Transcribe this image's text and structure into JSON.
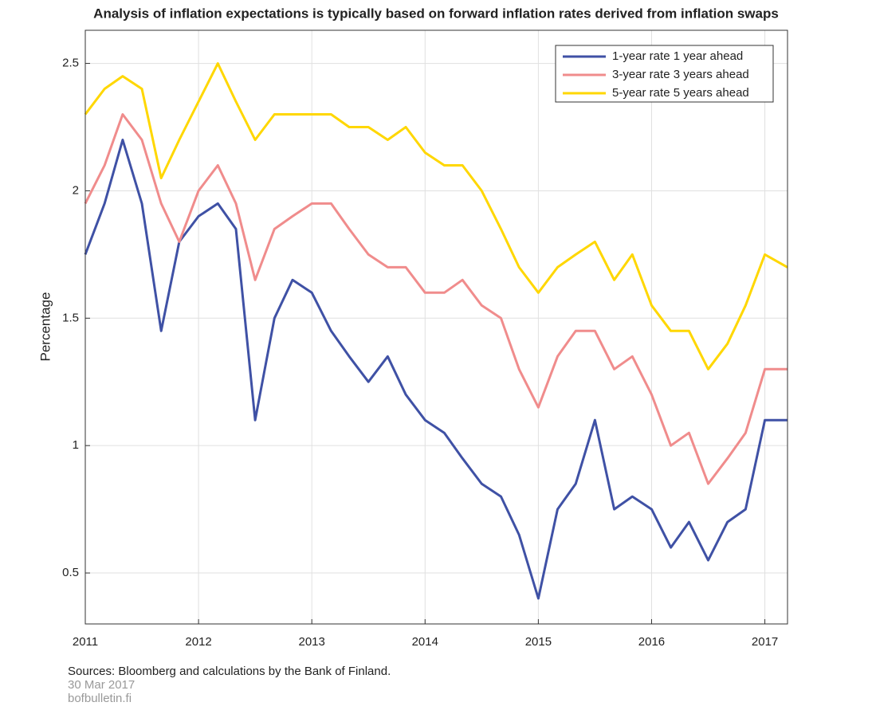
{
  "chart_data": {
    "type": "line",
    "title": "Analysis of inflation expectations is typically based on forward inflation rates derived from inflation swaps",
    "y_label": "Percentage",
    "source": "Sources: Bloomberg and calculations by the Bank of Finland.",
    "date": "30 Mar 2017",
    "website": "bofbulletin.fi",
    "x": [
      2011,
      2011.17,
      2011.33,
      2011.5,
      2011.67,
      2011.83,
      2012,
      2012.17,
      2012.33,
      2012.5,
      2012.67,
      2012.83,
      2013,
      2013.17,
      2013.33,
      2013.5,
      2013.67,
      2013.83,
      2014,
      2014.17,
      2014.33,
      2014.5,
      2014.67,
      2014.83,
      2015,
      2015.17,
      2015.33,
      2015.5,
      2015.67,
      2015.83,
      2016,
      2016.17,
      2016.33,
      2016.5,
      2016.67,
      2016.83,
      2017,
      2017.2
    ],
    "series": [
      {
        "name": "1-year rate 1 year ahead",
        "color": "#3f51a5",
        "values": [
          1.75,
          1.95,
          2.2,
          1.95,
          1.45,
          1.8,
          1.9,
          1.95,
          1.85,
          1.1,
          1.5,
          1.65,
          1.6,
          1.45,
          1.35,
          1.25,
          1.35,
          1.2,
          1.1,
          1.05,
          0.95,
          0.85,
          0.8,
          0.65,
          0.4,
          0.75,
          0.85,
          1.1,
          0.75,
          0.8,
          0.75,
          0.6,
          0.7,
          0.55,
          0.7,
          0.75,
          1.1,
          1.1
        ]
      },
      {
        "name": "3-year rate 3 years ahead",
        "color": "#f08c8c",
        "values": [
          1.95,
          2.1,
          2.3,
          2.2,
          1.95,
          1.8,
          2.0,
          2.1,
          1.95,
          1.65,
          1.85,
          1.9,
          1.95,
          1.95,
          1.85,
          1.75,
          1.7,
          1.7,
          1.6,
          1.6,
          1.65,
          1.55,
          1.5,
          1.3,
          1.15,
          1.35,
          1.45,
          1.45,
          1.3,
          1.35,
          1.2,
          1.0,
          1.05,
          0.85,
          0.95,
          1.05,
          1.3,
          1.3
        ]
      },
      {
        "name": "5-year rate 5 years ahead",
        "color": "#ffd700",
        "values": [
          2.3,
          2.4,
          2.45,
          2.4,
          2.05,
          2.2,
          2.35,
          2.5,
          2.35,
          2.2,
          2.3,
          2.3,
          2.3,
          2.3,
          2.25,
          2.25,
          2.2,
          2.25,
          2.15,
          2.1,
          2.1,
          2.0,
          1.85,
          1.7,
          1.6,
          1.7,
          1.75,
          1.8,
          1.65,
          1.75,
          1.55,
          1.45,
          1.45,
          1.3,
          1.4,
          1.55,
          1.75,
          1.7
        ]
      }
    ],
    "xlim": [
      2011,
      2017.2
    ],
    "xticks": [
      2011,
      2012,
      2013,
      2014,
      2015,
      2016,
      2017
    ],
    "ylim": [
      0.3,
      2.63
    ],
    "yticks": [
      0.5,
      1,
      1.5,
      2,
      2.5
    ],
    "grid": true,
    "legend": "top-right"
  }
}
